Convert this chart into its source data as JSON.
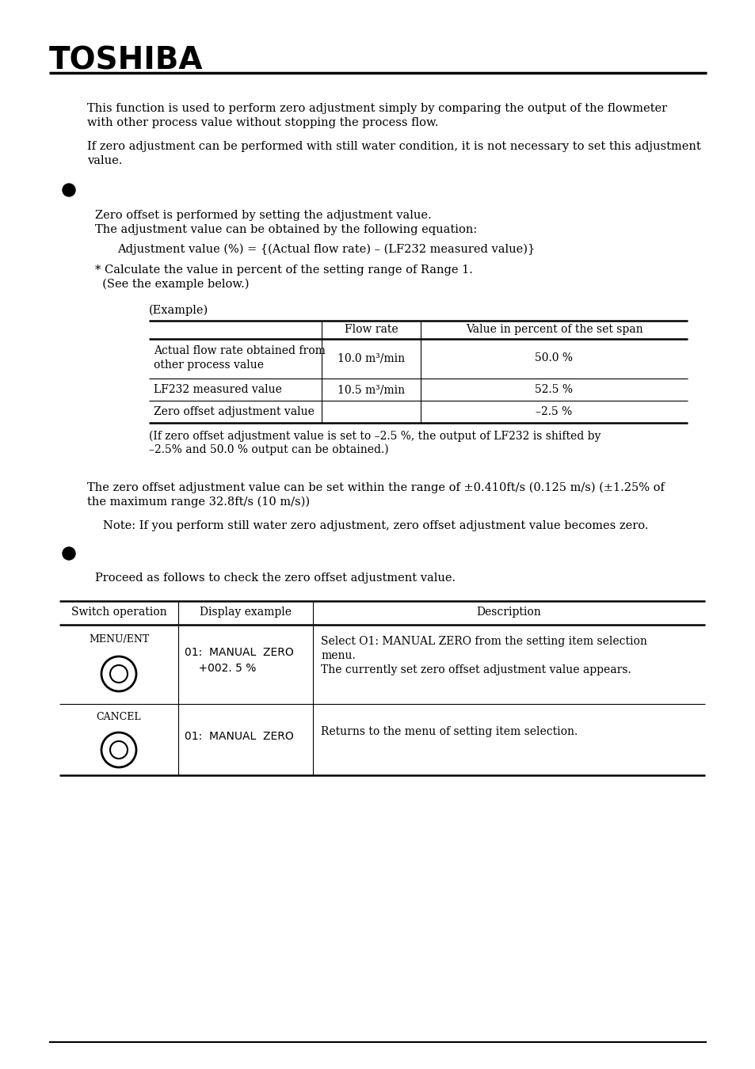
{
  "bg_color": "#ffffff",
  "title_text": "TOSHIBA",
  "para1_line1": "This function is used to perform zero adjustment simply by comparing the output of the flowmeter",
  "para1_line2": "with other process value without stopping the process flow.",
  "para2_line1": "If zero adjustment can be performed with still water condition, it is not necessary to set this adjustment",
  "para2_line2": "value.",
  "s1_line1": "Zero offset is performed by setting the adjustment value.",
  "s1_line2": "The adjustment value can be obtained by the following equation:",
  "equation": "Adjustment value (%) = {(Actual flow rate) – (LF232 measured value)}",
  "note1_line1": "* Calculate the value in percent of the setting range of Range 1.",
  "note1_line2": "  (See the example below.)",
  "example_label": "(Example)",
  "t1_col1_header": "",
  "t1_col2_header": "Flow rate",
  "t1_col3_header": "Value in percent of the set span",
  "t1_r1c1a": "Actual flow rate obtained from",
  "t1_r1c1b": "other process value",
  "t1_r1c2": "10.0 m³/min",
  "t1_r1c3": "50.0 %",
  "t1_r2c1": "LF232 measured value",
  "t1_r2c2": "10.5 m³/min",
  "t1_r2c3": "52.5 %",
  "t1_r3c1": "Zero offset adjustment value",
  "t1_r3c3": "–2.5 %",
  "t1_note1": "(If zero offset adjustment value is set to –2.5 %, the output of LF232 is shifted by",
  "t1_note2": "–2.5% and 50.0 % output can be obtained.)",
  "para3_line1": "The zero offset adjustment value can be set within the range of ±0.410ft/s (0.125 m/s) (±1.25% of",
  "para3_line2": "the maximum range 32.8ft/s (10 m/s))",
  "note2": "Note: If you perform still water zero adjustment, zero offset adjustment value becomes zero.",
  "s2_body": "Proceed as follows to check the zero offset adjustment value.",
  "t2h1": "Switch operation",
  "t2h2": "Display example",
  "t2h3": "Description",
  "t2r1_sw": "MENU/ENT",
  "t2r1_disp1": "01:  MANUAL  ZERO",
  "t2r1_disp2": "    +002. 5 %",
  "t2r1_desc1": "Select O1: MANUAL ZERO from the setting item selection",
  "t2r1_desc2": "menu.",
  "t2r1_desc3": "The currently set zero offset adjustment value appears.",
  "t2r2_sw": "CANCEL",
  "t2r2_disp": "01:  MANUAL  ZERO",
  "t2r2_desc": "Returns to the menu of setting item selection."
}
